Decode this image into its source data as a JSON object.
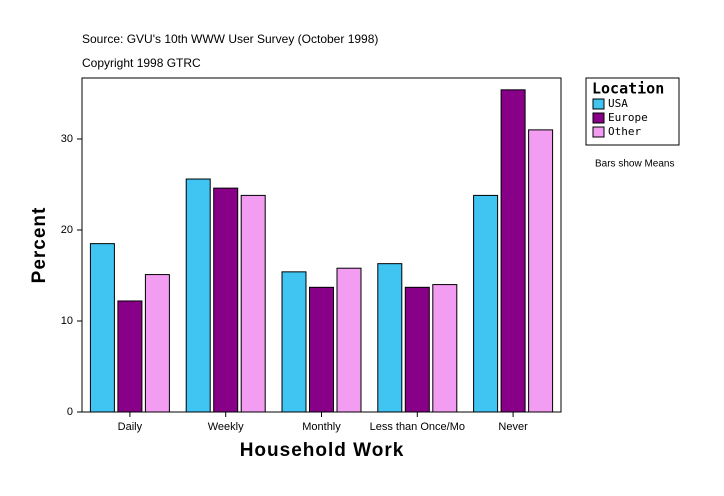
{
  "chart_data": {
    "type": "bar",
    "title": "Source: GVU's 10th WWW User Survey (October 1998)",
    "subtitle": "Copyright 1998 GTRC",
    "note": "Bars show Means",
    "legend_title": "Location",
    "xlabel": "Household Work",
    "ylabel": "Percent",
    "categories": [
      "Daily",
      "Weekly",
      "Monthly",
      "Less than Once/Mo",
      "Never"
    ],
    "series": [
      {
        "name": "USA",
        "color": "#40c4f2",
        "values": [
          18.5,
          25.6,
          15.4,
          16.3,
          23.8
        ]
      },
      {
        "name": "Europe",
        "color": "#880088",
        "values": [
          12.2,
          24.6,
          13.7,
          13.7,
          35.4
        ]
      },
      {
        "name": "Other",
        "color": "#f29cf2",
        "values": [
          15.1,
          23.8,
          15.8,
          14.0,
          31.0
        ]
      }
    ],
    "ylim": [
      0,
      36.7
    ],
    "yticks": [
      0,
      10,
      20,
      30
    ],
    "grid": false
  }
}
